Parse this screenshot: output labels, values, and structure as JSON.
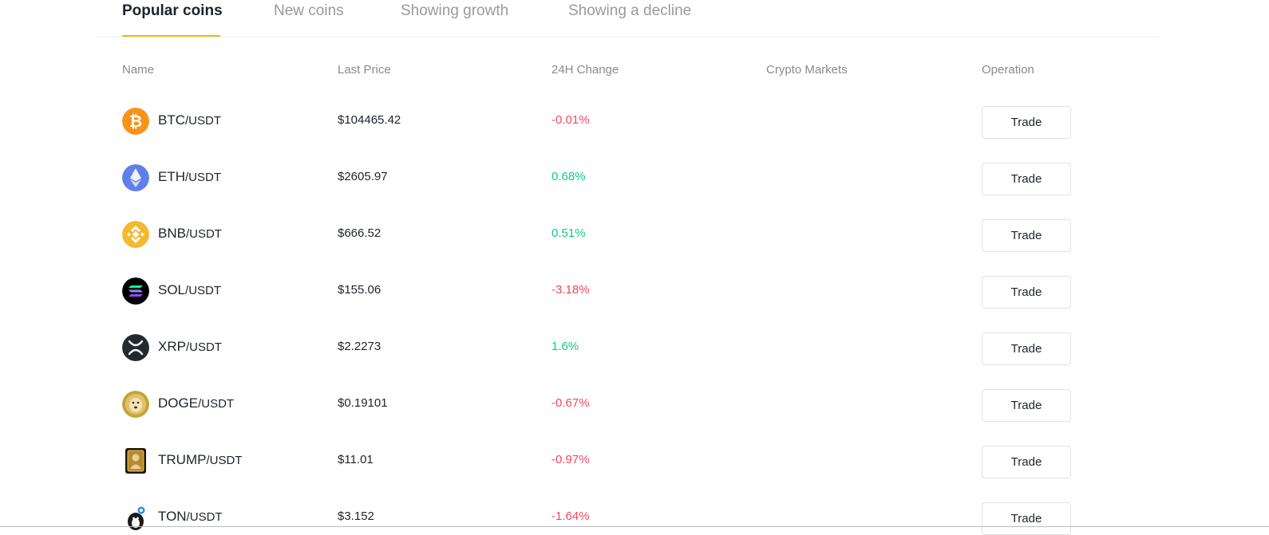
{
  "tabs": [
    {
      "label": "Popular coins",
      "active": true
    },
    {
      "label": "New coins",
      "active": false
    },
    {
      "label": "Showing growth",
      "active": false
    },
    {
      "label": "Showing a decline",
      "active": false
    }
  ],
  "table": {
    "headers": {
      "name": "Name",
      "last_price": "Last Price",
      "change_24h": "24H Change",
      "markets": "Crypto Markets",
      "operation": "Operation"
    },
    "rows": [
      {
        "base": "BTC",
        "quote": "/USDT",
        "price": "$104465.42",
        "change": "-0.01%",
        "direction": "down",
        "icon": "bitcoin-icon",
        "trade_label": "Trade"
      },
      {
        "base": "ETH",
        "quote": "/USDT",
        "price": "$2605.97",
        "change": "0.68%",
        "direction": "up",
        "icon": "ethereum-icon",
        "trade_label": "Trade"
      },
      {
        "base": "BNB",
        "quote": "/USDT",
        "price": "$666.52",
        "change": "0.51%",
        "direction": "up",
        "icon": "bnb-icon",
        "trade_label": "Trade"
      },
      {
        "base": "SOL",
        "quote": "/USDT",
        "price": "$155.06",
        "change": "-3.18%",
        "direction": "down",
        "icon": "solana-icon",
        "trade_label": "Trade"
      },
      {
        "base": "XRP",
        "quote": "/USDT",
        "price": "$2.2273",
        "change": "1.6%",
        "direction": "up",
        "icon": "xrp-icon",
        "trade_label": "Trade"
      },
      {
        "base": "DOGE",
        "quote": "/USDT",
        "price": "$0.19101",
        "change": "-0.67%",
        "direction": "down",
        "icon": "dogecoin-icon",
        "trade_label": "Trade"
      },
      {
        "base": "TRUMP",
        "quote": "/USDT",
        "price": "$11.01",
        "change": "-0.97%",
        "direction": "down",
        "icon": "trump-icon",
        "trade_label": "Trade"
      },
      {
        "base": "TON",
        "quote": "/USDT",
        "price": "$3.152",
        "change": "-1.64%",
        "direction": "down",
        "icon": "toncoin-icon",
        "trade_label": "Trade"
      }
    ]
  },
  "colors": {
    "accent": "#f0b90b",
    "up": "#0ecb81",
    "down": "#f6465d"
  }
}
